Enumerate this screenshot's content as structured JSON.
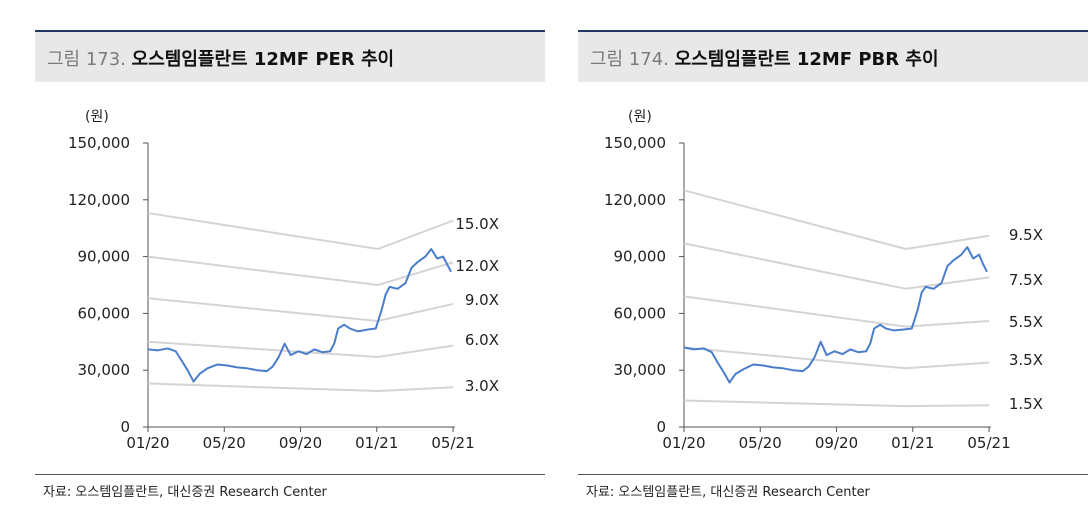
{
  "charts": [
    {
      "fig_no": "그림 173.",
      "title": "오스템임플란트 12MF PER 추이",
      "source": "자료: 오스템임플란트, 대신증권 Research Center",
      "chart_data": {
        "type": "line",
        "unit_label": "(원)",
        "ylim": [
          0,
          150000
        ],
        "yticks": [
          "150,000",
          "120,000",
          "90,000",
          "60,000",
          "30,000",
          "0"
        ],
        "xticks": [
          "01/20",
          "05/20",
          "09/20",
          "01/21",
          "05/21"
        ],
        "band_labels": [
          "15.0X",
          "12.0X",
          "9.0X",
          "6.0X",
          "3.0X"
        ],
        "bands": [
          {
            "name": "15.0X",
            "points": [
              [
                0,
                113000
              ],
              [
                11.6,
                94000
              ],
              [
                15.4,
                109000
              ]
            ]
          },
          {
            "name": "12.0X",
            "points": [
              [
                0,
                90000
              ],
              [
                11.6,
                75000
              ],
              [
                15.4,
                87000
              ]
            ]
          },
          {
            "name": "9.0X",
            "points": [
              [
                0,
                68000
              ],
              [
                11.6,
                56000
              ],
              [
                15.4,
                65000
              ]
            ]
          },
          {
            "name": "6.0X",
            "points": [
              [
                0,
                45000
              ],
              [
                11.6,
                37000
              ],
              [
                15.4,
                43000
              ]
            ]
          },
          {
            "name": "3.0X",
            "points": [
              [
                0,
                23000
              ],
              [
                11.6,
                19000
              ],
              [
                15.4,
                21000
              ]
            ]
          }
        ],
        "price": [
          [
            0,
            41000
          ],
          [
            0.5,
            40500
          ],
          [
            1,
            41500
          ],
          [
            1.4,
            40000
          ],
          [
            1.7,
            35000
          ],
          [
            2.0,
            30000
          ],
          [
            2.3,
            24000
          ],
          [
            2.6,
            28000
          ],
          [
            3.0,
            31000
          ],
          [
            3.5,
            33000
          ],
          [
            4.0,
            32500
          ],
          [
            4.5,
            31500
          ],
          [
            5.0,
            31000
          ],
          [
            5.5,
            30000
          ],
          [
            6.0,
            29500
          ],
          [
            6.3,
            32000
          ],
          [
            6.6,
            37000
          ],
          [
            6.9,
            44000
          ],
          [
            7.2,
            38000
          ],
          [
            7.6,
            40000
          ],
          [
            8.0,
            38500
          ],
          [
            8.4,
            41000
          ],
          [
            8.8,
            39500
          ],
          [
            9.2,
            40000
          ],
          [
            9.4,
            44000
          ],
          [
            9.6,
            52000
          ],
          [
            9.9,
            54000
          ],
          [
            10.2,
            52000
          ],
          [
            10.6,
            50500
          ],
          [
            11.1,
            51500
          ],
          [
            11.5,
            52000
          ],
          [
            11.8,
            62000
          ],
          [
            12.0,
            70000
          ],
          [
            12.2,
            74000
          ],
          [
            12.6,
            73000
          ],
          [
            13.0,
            76000
          ],
          [
            13.3,
            84000
          ],
          [
            13.6,
            87000
          ],
          [
            14.0,
            90000
          ],
          [
            14.3,
            94000
          ],
          [
            14.6,
            89000
          ],
          [
            14.9,
            90000
          ],
          [
            15.1,
            86000
          ],
          [
            15.3,
            82000
          ]
        ]
      }
    },
    {
      "fig_no": "그림 174.",
      "title": "오스템임플란트 12MF PBR 추이",
      "source": "자료: 오스템임플란트, 대신증권 Research Center",
      "chart_data": {
        "type": "line",
        "unit_label": "(원)",
        "ylim": [
          0,
          150000
        ],
        "yticks": [
          "150,000",
          "120,000",
          "90,000",
          "60,000",
          "30,000",
          "0"
        ],
        "xticks": [
          "01/20",
          "05/20",
          "09/20",
          "01/21",
          "05/21"
        ],
        "band_labels": [
          "9.5X",
          "7.5X",
          "5.5X",
          "3.5X",
          "1.5X"
        ],
        "bands": [
          {
            "name": "9.5X",
            "points": [
              [
                0,
                125000
              ],
              [
                11.2,
                94000
              ],
              [
                15.4,
                101000
              ]
            ]
          },
          {
            "name": "7.5X",
            "points": [
              [
                0,
                97000
              ],
              [
                11.2,
                73000
              ],
              [
                15.4,
                79000
              ]
            ]
          },
          {
            "name": "5.5X",
            "points": [
              [
                0,
                69000
              ],
              [
                11.2,
                53000
              ],
              [
                15.4,
                56000
              ]
            ]
          },
          {
            "name": "3.5X",
            "points": [
              [
                0,
                42000
              ],
              [
                11.2,
                31000
              ],
              [
                15.4,
                34000
              ]
            ]
          },
          {
            "name": "1.5X",
            "points": [
              [
                0,
                14000
              ],
              [
                11.2,
                11000
              ],
              [
                15.4,
                11500
              ]
            ]
          }
        ],
        "price": [
          [
            0,
            42000
          ],
          [
            0.5,
            41000
          ],
          [
            1,
            41500
          ],
          [
            1.4,
            39500
          ],
          [
            1.7,
            34000
          ],
          [
            2.0,
            29000
          ],
          [
            2.3,
            23500
          ],
          [
            2.6,
            28000
          ],
          [
            3.0,
            30500
          ],
          [
            3.5,
            33000
          ],
          [
            4.0,
            32500
          ],
          [
            4.5,
            31500
          ],
          [
            5.0,
            31000
          ],
          [
            5.5,
            30000
          ],
          [
            6.0,
            29500
          ],
          [
            6.3,
            32000
          ],
          [
            6.6,
            37000
          ],
          [
            6.9,
            45000
          ],
          [
            7.2,
            38000
          ],
          [
            7.6,
            40000
          ],
          [
            8.0,
            38500
          ],
          [
            8.4,
            41000
          ],
          [
            8.8,
            39500
          ],
          [
            9.2,
            40000
          ],
          [
            9.4,
            44000
          ],
          [
            9.6,
            52000
          ],
          [
            9.9,
            54000
          ],
          [
            10.2,
            52000
          ],
          [
            10.6,
            51000
          ],
          [
            11.1,
            51500
          ],
          [
            11.5,
            52000
          ],
          [
            11.8,
            62000
          ],
          [
            12.0,
            71000
          ],
          [
            12.2,
            74000
          ],
          [
            12.6,
            73000
          ],
          [
            13.0,
            76000
          ],
          [
            13.3,
            85000
          ],
          [
            13.6,
            88000
          ],
          [
            14.0,
            91000
          ],
          [
            14.3,
            95000
          ],
          [
            14.6,
            89000
          ],
          [
            14.9,
            91000
          ],
          [
            15.1,
            86000
          ],
          [
            15.3,
            82000
          ]
        ]
      }
    }
  ],
  "colors": {
    "price": "#4a7ecb",
    "band": "#d4d4d4",
    "axis": "#555555",
    "title_border": "#1f3864"
  }
}
